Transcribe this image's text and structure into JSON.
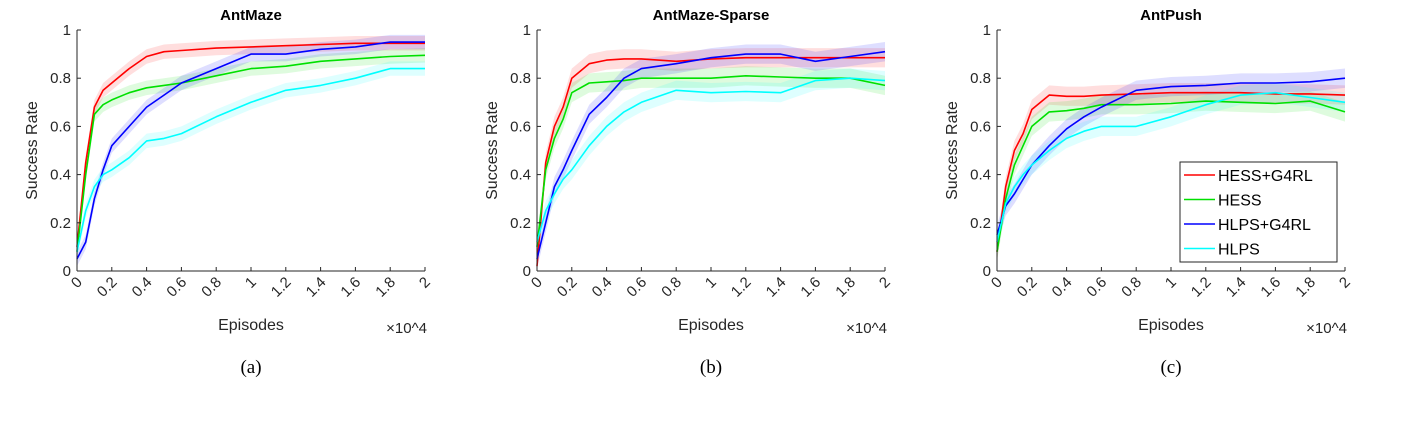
{
  "chart_data": [
    {
      "type": "line",
      "title": "AntMaze",
      "caption": "(a)",
      "xlabel": "Episodes",
      "ylabel": "Success Rate",
      "x_multiplier": "×10^4",
      "xlim": [
        0,
        2
      ],
      "ylim": [
        0,
        1
      ],
      "xticks": [
        "0",
        "0.2",
        "0.4",
        "0.6",
        "0.8",
        "1",
        "1.2",
        "1.4",
        "1.6",
        "1.8",
        "2"
      ],
      "yticks": [
        "0",
        "0.2",
        "0.4",
        "0.6",
        "0.8",
        "1"
      ],
      "grid": false,
      "band_halfwidth": 0.03,
      "x": [
        0,
        0.05,
        0.1,
        0.15,
        0.2,
        0.3,
        0.4,
        0.5,
        0.6,
        0.8,
        1.0,
        1.2,
        1.4,
        1.6,
        1.8,
        2.0
      ],
      "series": [
        {
          "name": "HESS+G4RL",
          "color": "#ff0000",
          "values": [
            0.1,
            0.45,
            0.68,
            0.75,
            0.78,
            0.84,
            0.89,
            0.91,
            0.915,
            0.925,
            0.93,
            0.935,
            0.94,
            0.945,
            0.945,
            0.945
          ]
        },
        {
          "name": "HESS",
          "color": "#00e000",
          "values": [
            0.08,
            0.4,
            0.65,
            0.69,
            0.71,
            0.74,
            0.76,
            0.77,
            0.78,
            0.81,
            0.84,
            0.85,
            0.87,
            0.88,
            0.89,
            0.895
          ]
        },
        {
          "name": "HLPS+G4RL",
          "color": "#0000ff",
          "values": [
            0.05,
            0.12,
            0.3,
            0.42,
            0.52,
            0.6,
            0.68,
            0.73,
            0.78,
            0.84,
            0.9,
            0.9,
            0.92,
            0.93,
            0.95,
            0.95
          ]
        },
        {
          "name": "HLPS",
          "color": "#00ffff",
          "values": [
            0.08,
            0.25,
            0.35,
            0.4,
            0.42,
            0.47,
            0.54,
            0.55,
            0.57,
            0.64,
            0.7,
            0.75,
            0.77,
            0.8,
            0.84,
            0.84
          ]
        }
      ]
    },
    {
      "type": "line",
      "title": "AntMaze-Sparse",
      "caption": "(b)",
      "xlabel": "Episodes",
      "ylabel": "Success Rate",
      "x_multiplier": "×10^4",
      "xlim": [
        0,
        2
      ],
      "ylim": [
        0,
        1
      ],
      "xticks": [
        "0",
        "0.2",
        "0.4",
        "0.6",
        "0.8",
        "1",
        "1.2",
        "1.4",
        "1.6",
        "1.8",
        "2"
      ],
      "yticks": [
        "0",
        "0.2",
        "0.4",
        "0.6",
        "0.8",
        "1"
      ],
      "grid": false,
      "band_halfwidth": 0.04,
      "x": [
        0,
        0.05,
        0.1,
        0.15,
        0.2,
        0.3,
        0.4,
        0.5,
        0.6,
        0.8,
        1.0,
        1.2,
        1.4,
        1.6,
        1.8,
        2.0
      ],
      "series": [
        {
          "name": "HESS+G4RL",
          "color": "#ff0000",
          "values": [
            0.02,
            0.45,
            0.6,
            0.68,
            0.8,
            0.86,
            0.875,
            0.88,
            0.88,
            0.87,
            0.88,
            0.885,
            0.885,
            0.885,
            0.885,
            0.885
          ]
        },
        {
          "name": "HESS",
          "color": "#00e000",
          "values": [
            0.1,
            0.42,
            0.55,
            0.63,
            0.74,
            0.78,
            0.785,
            0.79,
            0.8,
            0.8,
            0.8,
            0.81,
            0.805,
            0.8,
            0.8,
            0.77
          ]
        },
        {
          "name": "HLPS+G4RL",
          "color": "#0000ff",
          "values": [
            0.05,
            0.2,
            0.35,
            0.42,
            0.5,
            0.65,
            0.72,
            0.8,
            0.84,
            0.86,
            0.885,
            0.9,
            0.9,
            0.87,
            0.89,
            0.91
          ]
        },
        {
          "name": "HLPS",
          "color": "#00ffff",
          "values": [
            0.12,
            0.25,
            0.32,
            0.38,
            0.42,
            0.52,
            0.6,
            0.66,
            0.7,
            0.75,
            0.74,
            0.745,
            0.74,
            0.79,
            0.8,
            0.79
          ]
        }
      ]
    },
    {
      "type": "line",
      "title": "AntPush",
      "caption": "(c)",
      "xlabel": "Episodes",
      "ylabel": "Success Rate",
      "x_multiplier": "×10^4",
      "xlim": [
        0,
        2
      ],
      "ylim": [
        0,
        1
      ],
      "xticks": [
        "0",
        "0.2",
        "0.4",
        "0.6",
        "0.8",
        "1",
        "1.2",
        "1.4",
        "1.6",
        "1.8",
        "2"
      ],
      "yticks": [
        "0",
        "0.2",
        "0.4",
        "0.6",
        "0.8",
        "1"
      ],
      "grid": false,
      "band_halfwidth": 0.04,
      "legend": "inside-lower-right",
      "x": [
        0,
        0.05,
        0.1,
        0.15,
        0.2,
        0.3,
        0.4,
        0.5,
        0.6,
        0.8,
        1.0,
        1.2,
        1.4,
        1.6,
        1.8,
        2.0
      ],
      "series": [
        {
          "name": "HESS+G4RL",
          "color": "#ff0000",
          "values": [
            0.08,
            0.35,
            0.5,
            0.57,
            0.67,
            0.73,
            0.725,
            0.725,
            0.73,
            0.735,
            0.74,
            0.74,
            0.74,
            0.735,
            0.735,
            0.73
          ]
        },
        {
          "name": "HESS",
          "color": "#00e000",
          "values": [
            0.08,
            0.3,
            0.44,
            0.52,
            0.6,
            0.66,
            0.665,
            0.675,
            0.69,
            0.69,
            0.695,
            0.705,
            0.7,
            0.695,
            0.705,
            0.66
          ]
        },
        {
          "name": "HLPS+G4RL",
          "color": "#0000ff",
          "values": [
            0.15,
            0.27,
            0.32,
            0.38,
            0.44,
            0.52,
            0.59,
            0.64,
            0.68,
            0.75,
            0.765,
            0.77,
            0.78,
            0.78,
            0.785,
            0.8
          ]
        },
        {
          "name": "HLPS",
          "color": "#00ffff",
          "values": [
            0.12,
            0.28,
            0.35,
            0.4,
            0.44,
            0.5,
            0.55,
            0.58,
            0.6,
            0.6,
            0.64,
            0.69,
            0.73,
            0.74,
            0.72,
            0.7
          ]
        }
      ]
    }
  ]
}
